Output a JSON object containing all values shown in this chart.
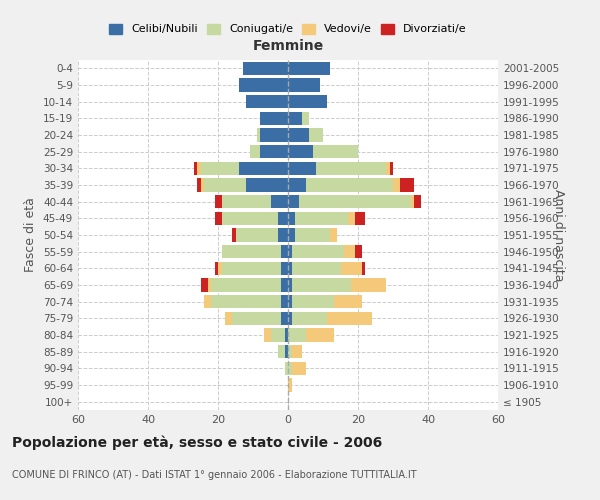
{
  "age_groups": [
    "100+",
    "95-99",
    "90-94",
    "85-89",
    "80-84",
    "75-79",
    "70-74",
    "65-69",
    "60-64",
    "55-59",
    "50-54",
    "45-49",
    "40-44",
    "35-39",
    "30-34",
    "25-29",
    "20-24",
    "15-19",
    "10-14",
    "5-9",
    "0-4"
  ],
  "birth_years": [
    "≤ 1905",
    "1906-1910",
    "1911-1915",
    "1916-1920",
    "1921-1925",
    "1926-1930",
    "1931-1935",
    "1936-1940",
    "1941-1945",
    "1946-1950",
    "1951-1955",
    "1956-1960",
    "1961-1965",
    "1966-1970",
    "1971-1975",
    "1976-1980",
    "1981-1985",
    "1986-1990",
    "1991-1995",
    "1996-2000",
    "2001-2005"
  ],
  "males": {
    "celibi": [
      0,
      0,
      0,
      1,
      1,
      2,
      2,
      2,
      2,
      2,
      3,
      3,
      5,
      12,
      14,
      8,
      8,
      8,
      12,
      14,
      13
    ],
    "coniugati": [
      0,
      0,
      1,
      2,
      4,
      14,
      20,
      20,
      17,
      17,
      12,
      16,
      14,
      12,
      11,
      3,
      1,
      0,
      0,
      0,
      0
    ],
    "vedovi": [
      0,
      0,
      0,
      0,
      2,
      2,
      2,
      1,
      1,
      0,
      0,
      0,
      0,
      1,
      1,
      0,
      0,
      0,
      0,
      0,
      0
    ],
    "divorziati": [
      0,
      0,
      0,
      0,
      0,
      0,
      0,
      2,
      1,
      0,
      1,
      2,
      2,
      1,
      1,
      0,
      0,
      0,
      0,
      0,
      0
    ]
  },
  "females": {
    "nubili": [
      0,
      0,
      0,
      0,
      0,
      1,
      1,
      1,
      1,
      1,
      2,
      2,
      3,
      5,
      8,
      7,
      6,
      4,
      11,
      9,
      12
    ],
    "coniugate": [
      0,
      0,
      1,
      1,
      5,
      10,
      12,
      17,
      14,
      15,
      10,
      15,
      32,
      25,
      20,
      13,
      4,
      2,
      0,
      0,
      0
    ],
    "vedove": [
      0,
      1,
      4,
      3,
      8,
      13,
      8,
      10,
      6,
      3,
      2,
      2,
      1,
      2,
      1,
      0,
      0,
      0,
      0,
      0,
      0
    ],
    "divorziate": [
      0,
      0,
      0,
      0,
      0,
      0,
      0,
      0,
      1,
      2,
      0,
      3,
      2,
      4,
      1,
      0,
      0,
      0,
      0,
      0,
      0
    ]
  },
  "colors": {
    "celibi": "#3a6ea5",
    "coniugati": "#c5d9a0",
    "vedovi": "#f5c97a",
    "divorziati": "#cc2222"
  },
  "title": "Popolazione per età, sesso e stato civile - 2006",
  "subtitle": "COMUNE DI FRINCO (AT) - Dati ISTAT 1° gennaio 2006 - Elaborazione TUTTITALIA.IT",
  "xlabel_right": "Femmine",
  "ylabel_left": "Fasce di età",
  "ylabel_right": "Anni di nascita",
  "xlim": 60,
  "legend_labels": [
    "Celibi/Nubili",
    "Coniugati/e",
    "Vedovi/e",
    "Divorziati/e"
  ],
  "bg_color": "#f0f0f0",
  "plot_bg_color": "#ffffff"
}
